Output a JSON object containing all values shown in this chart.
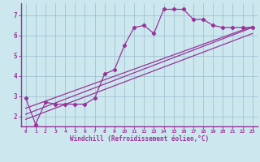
{
  "xlabel": "Windchill (Refroidissement éolien,°C)",
  "background_color": "#cce8ee",
  "grid_color": "#99bbcc",
  "line_color": "#993399",
  "spine_color": "#993399",
  "xlim": [
    -0.5,
    23.5
  ],
  "ylim": [
    1.5,
    7.6
  ],
  "xticks": [
    0,
    1,
    2,
    3,
    4,
    5,
    6,
    7,
    8,
    9,
    10,
    11,
    12,
    13,
    14,
    15,
    16,
    17,
    18,
    19,
    20,
    21,
    22,
    23
  ],
  "yticks": [
    2,
    3,
    4,
    5,
    6,
    7
  ],
  "scatter_x": [
    0,
    1,
    2,
    3,
    4,
    5,
    6,
    7,
    8,
    9,
    10,
    11,
    12,
    13,
    14,
    15,
    16,
    17,
    18,
    19,
    20,
    21,
    22,
    23
  ],
  "scatter_y": [
    2.9,
    1.6,
    2.7,
    2.6,
    2.6,
    2.6,
    2.6,
    2.9,
    4.1,
    4.3,
    5.5,
    6.4,
    6.5,
    6.1,
    7.3,
    7.3,
    7.3,
    6.8,
    6.8,
    6.5,
    6.4,
    6.4,
    6.4,
    6.4
  ],
  "line1_x": [
    0,
    23
  ],
  "line1_y": [
    2.4,
    6.45
  ],
  "line2_x": [
    0,
    23
  ],
  "line2_y": [
    2.1,
    6.4
  ],
  "line3_x": [
    0,
    23
  ],
  "line3_y": [
    1.85,
    6.1
  ]
}
